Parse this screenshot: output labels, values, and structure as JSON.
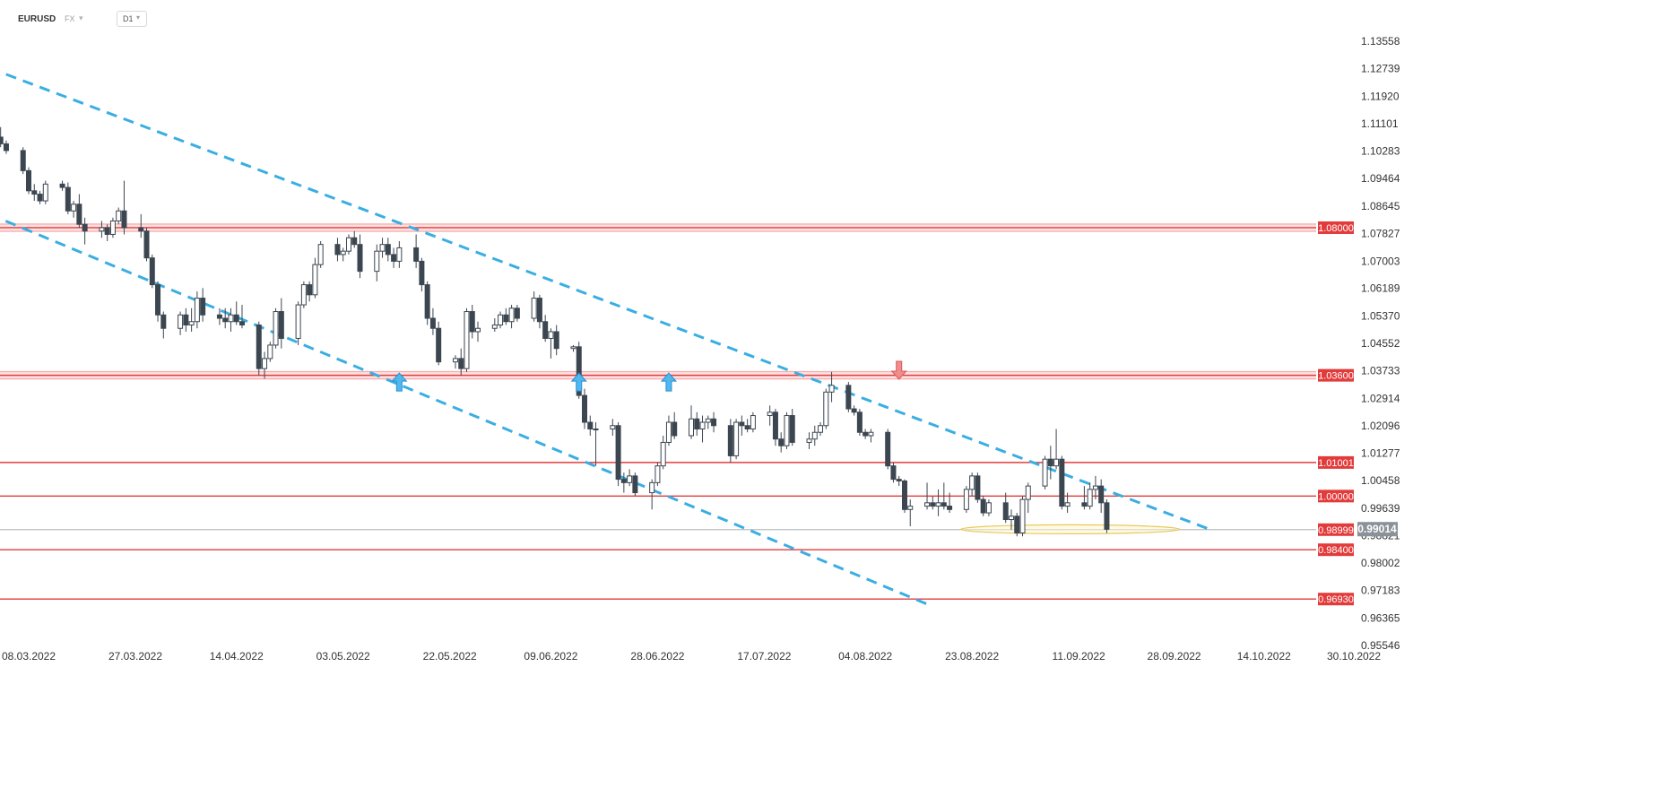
{
  "header": {
    "symbol": "EURUSD",
    "market": "FX",
    "timeframe": "D1"
  },
  "chart_data": {
    "type": "candlestick",
    "y_axis": {
      "ticks": [
        "1.13558",
        "1.12739",
        "1.11920",
        "1.11101",
        "1.10283",
        "1.09464",
        "1.08645",
        "1.07827",
        "1.07003",
        "1.06189",
        "1.05370",
        "1.04552",
        "1.03733",
        "1.02914",
        "1.02096",
        "1.01277",
        "1.00458",
        "0.99639",
        "0.98821",
        "0.98002",
        "0.97183",
        "0.96365",
        "0.95546"
      ],
      "tick_values": [
        1.13558,
        1.12739,
        1.1192,
        1.11101,
        1.10283,
        1.09464,
        1.08645,
        1.07827,
        1.07003,
        1.06189,
        1.0537,
        1.04552,
        1.03733,
        1.02914,
        1.02096,
        1.01277,
        1.00458,
        0.99639,
        0.98821,
        0.98002,
        0.97183,
        0.96365,
        0.95546
      ],
      "range": [
        0.95546,
        1.13558
      ]
    },
    "x_axis": {
      "ticks": [
        "08.03.2022",
        "27.03.2022",
        "14.04.2022",
        "03.05.2022",
        "22.05.2022",
        "09.06.2022",
        "28.06.2022",
        "17.07.2022",
        "04.08.2022",
        "23.08.2022",
        "11.09.2022",
        "28.09.2022",
        "14.10.2022",
        "30.10.2022"
      ]
    },
    "levels": [
      {
        "label": "1.08000",
        "value": 1.08,
        "zone": true
      },
      {
        "label": "1.03600",
        "value": 1.036,
        "zone": true
      },
      {
        "label": "1.01001",
        "value": 1.01001,
        "zone": false
      },
      {
        "label": "1.00000",
        "value": 1.0,
        "zone": false
      },
      {
        "label": "0.98999",
        "value": 0.98999,
        "zone": false
      },
      {
        "label": "0.98400",
        "value": 0.984,
        "zone": false
      },
      {
        "label": "0.96930",
        "value": 0.9693,
        "zone": false
      }
    ],
    "current_price": {
      "label": "0.99014",
      "value": 0.99014
    },
    "trend_channel": [
      {
        "name": "upper",
        "from": [
          "26.02.2022",
          1.1295
        ],
        "to": [
          "04.10.2022",
          0.9903
        ]
      },
      {
        "name": "lower",
        "from": [
          "26.02.2022",
          1.0861
        ],
        "to": [
          "15.08.2022",
          0.9678
        ]
      }
    ],
    "signals": [
      {
        "type": "up",
        "date": "13.05.2022",
        "value": 1.034
      },
      {
        "type": "up",
        "date": "14.06.2022",
        "value": 1.034
      },
      {
        "type": "up",
        "date": "30.06.2022",
        "value": 1.034
      },
      {
        "type": "down",
        "date": "10.08.2022",
        "value": 1.0375
      }
    ],
    "highlight_ellipse": {
      "from": "21.08.2022",
      "to": "29.09.2022",
      "value": 0.9901
    },
    "candles": [
      [
        1.0904,
        1.0955,
        1.0874,
        1.0951
      ],
      [
        1.0951,
        1.106,
        1.094,
        1.1045
      ],
      [
        1.1045,
        1.106,
        1.0983,
        1.0995
      ],
      [
        1.0995,
        1.101,
        1.093,
        1.094
      ],
      [
        1.094,
        1.096,
        1.092,
        1.095
      ],
      [
        1.095,
        1.098,
        1.094,
        1.096
      ],
      [
        1.096,
        1.102,
        1.0955,
        1.101
      ],
      [
        1.101,
        1.109,
        1.1,
        1.108
      ],
      [
        1.108,
        1.11,
        1.102,
        1.104
      ],
      [
        1.104,
        1.105,
        1.1015,
        1.103
      ],
      [
        1.103,
        1.106,
        1.1,
        1.101
      ],
      [
        1.101,
        1.103,
        1.0995,
        1.1005
      ],
      [
        1.1005,
        1.1025,
        1.098,
        1.099
      ],
      [
        1.099,
        1.1,
        1.097,
        1.098
      ],
      [
        1.098,
        1.1,
        1.0975,
        1.099
      ],
      [
        1.099,
        1.102,
        1.0965,
        1.0975
      ],
      [
        1.0975,
        1.1,
        1.096,
        1.0975
      ],
      [
        1.0975,
        1.108,
        1.096,
        1.107
      ],
      [
        1.107,
        1.118,
        1.106,
        1.116
      ],
      [
        1.116,
        1.118,
        1.106,
        1.107
      ],
      [
        1.107,
        1.11,
        1.104,
        1.105
      ],
      [
        1.105,
        1.106,
        1.102,
        1.103
      ],
      [
        1.103,
        1.104,
        1.096,
        1.097
      ],
      [
        1.097,
        1.098,
        1.09,
        1.091
      ],
      [
        1.091,
        1.093,
        1.088,
        1.09
      ],
      [
        1.09,
        1.091,
        1.087,
        1.088
      ],
      [
        1.088,
        1.094,
        1.087,
        1.093
      ],
      [
        1.093,
        1.094,
        1.091,
        1.092
      ],
      [
        1.092,
        1.0935,
        1.084,
        1.085
      ],
      [
        1.085,
        1.088,
        1.083,
        1.087
      ],
      [
        1.087,
        1.09,
        1.08,
        1.081
      ],
      [
        1.081,
        1.083,
        1.075,
        1.079
      ],
      [
        1.079,
        1.082,
        1.077,
        1.08
      ],
      [
        1.08,
        1.081,
        1.076,
        1.078
      ],
      [
        1.078,
        1.083,
        1.077,
        1.082
      ],
      [
        1.082,
        1.086,
        1.081,
        1.085
      ],
      [
        1.085,
        1.094,
        1.078,
        1.08
      ],
      [
        1.08,
        1.084,
        1.077,
        1.079
      ],
      [
        1.079,
        1.08,
        1.07,
        1.071
      ],
      [
        1.071,
        1.072,
        1.062,
        1.063
      ],
      [
        1.063,
        1.064,
        1.052,
        1.054
      ],
      [
        1.054,
        1.055,
        1.047,
        1.05
      ],
      [
        1.05,
        1.055,
        1.048,
        1.054
      ],
      [
        1.054,
        1.056,
        1.049,
        1.051
      ],
      [
        1.051,
        1.056,
        1.049,
        1.052
      ],
      [
        1.052,
        1.061,
        1.05,
        1.059
      ],
      [
        1.059,
        1.062,
        1.052,
        1.054
      ],
      [
        1.054,
        1.056,
        1.051,
        1.053
      ],
      [
        1.053,
        1.056,
        1.05,
        1.052
      ],
      [
        1.052,
        1.056,
        1.049,
        1.054
      ],
      [
        1.054,
        1.058,
        1.051,
        1.052
      ],
      [
        1.052,
        1.057,
        1.05,
        1.051
      ],
      [
        1.051,
        1.052,
        1.036,
        1.038
      ],
      [
        1.038,
        1.043,
        1.035,
        1.041
      ],
      [
        1.041,
        1.046,
        1.04,
        1.045
      ],
      [
        1.045,
        1.056,
        1.044,
        1.055
      ],
      [
        1.055,
        1.059,
        1.044,
        1.047
      ],
      [
        1.047,
        1.058,
        1.045,
        1.057
      ],
      [
        1.057,
        1.064,
        1.056,
        1.063
      ],
      [
        1.063,
        1.064,
        1.058,
        1.06
      ],
      [
        1.06,
        1.071,
        1.059,
        1.069
      ],
      [
        1.069,
        1.076,
        1.068,
        1.075
      ],
      [
        1.075,
        1.077,
        1.07,
        1.072
      ],
      [
        1.072,
        1.074,
        1.07,
        1.073
      ],
      [
        1.073,
        1.078,
        1.072,
        1.077
      ],
      [
        1.077,
        1.079,
        1.074,
        1.075
      ],
      [
        1.075,
        1.078,
        1.065,
        1.067
      ],
      [
        1.067,
        1.075,
        1.064,
        1.073
      ],
      [
        1.073,
        1.077,
        1.071,
        1.075
      ],
      [
        1.075,
        1.077,
        1.07,
        1.072
      ],
      [
        1.072,
        1.074,
        1.068,
        1.07
      ],
      [
        1.07,
        1.076,
        1.068,
        1.074
      ],
      [
        1.074,
        1.078,
        1.068,
        1.07
      ],
      [
        1.07,
        1.071,
        1.061,
        1.063
      ],
      [
        1.063,
        1.064,
        1.051,
        1.053
      ],
      [
        1.053,
        1.056,
        1.048,
        1.05
      ],
      [
        1.05,
        1.052,
        1.039,
        1.04
      ],
      [
        1.04,
        1.042,
        1.038,
        1.041
      ],
      [
        1.041,
        1.044,
        1.036,
        1.038
      ],
      [
        1.038,
        1.056,
        1.037,
        1.055
      ],
      [
        1.055,
        1.057,
        1.047,
        1.049
      ],
      [
        1.049,
        1.052,
        1.046,
        1.05
      ],
      [
        1.05,
        1.053,
        1.049,
        1.051
      ],
      [
        1.051,
        1.055,
        1.05,
        1.054
      ],
      [
        1.054,
        1.056,
        1.051,
        1.052
      ],
      [
        1.052,
        1.057,
        1.05,
        1.056
      ],
      [
        1.056,
        1.057,
        1.052,
        1.053
      ],
      [
        1.053,
        1.061,
        1.052,
        1.059
      ],
      [
        1.059,
        1.06,
        1.05,
        1.052
      ],
      [
        1.052,
        1.054,
        1.046,
        1.047
      ],
      [
        1.047,
        1.05,
        1.041,
        1.049
      ],
      [
        1.049,
        1.051,
        1.042,
        1.044
      ],
      [
        1.044,
        1.045,
        1.043,
        1.0445
      ],
      [
        1.0445,
        1.046,
        1.029,
        1.03
      ],
      [
        1.03,
        1.032,
        1.02,
        1.022
      ],
      [
        1.022,
        1.024,
        1.018,
        1.02
      ],
      [
        1.02,
        1.022,
        1.009,
        1.02
      ],
      [
        1.02,
        1.023,
        1.018,
        1.021
      ],
      [
        1.021,
        1.022,
        1.003,
        1.005
      ],
      [
        1.005,
        1.007,
        1.001,
        1.004
      ],
      [
        1.004,
        1.008,
        1.003,
        1.006
      ],
      [
        1.006,
        1.007,
        1.0,
        1.001
      ],
      [
        1.001,
        1.005,
        0.996,
        1.004
      ],
      [
        1.004,
        1.01,
        1.003,
        1.009
      ],
      [
        1.009,
        1.018,
        1.008,
        1.016
      ],
      [
        1.016,
        1.024,
        1.015,
        1.022
      ],
      [
        1.022,
        1.025,
        1.017,
        1.018
      ],
      [
        1.018,
        1.027,
        1.017,
        1.023
      ],
      [
        1.023,
        1.025,
        1.018,
        1.02
      ],
      [
        1.02,
        1.024,
        1.016,
        1.022
      ],
      [
        1.022,
        1.024,
        1.02,
        1.023
      ],
      [
        1.023,
        1.025,
        1.019,
        1.021
      ],
      [
        1.021,
        1.023,
        1.01,
        1.012
      ],
      [
        1.012,
        1.023,
        1.011,
        1.022
      ],
      [
        1.022,
        1.024,
        1.018,
        1.021
      ],
      [
        1.021,
        1.023,
        1.019,
        1.02
      ],
      [
        1.02,
        1.025,
        1.019,
        1.024
      ],
      [
        1.024,
        1.027,
        1.021,
        1.025
      ],
      [
        1.025,
        1.026,
        1.015,
        1.017
      ],
      [
        1.017,
        1.019,
        1.013,
        1.015
      ],
      [
        1.015,
        1.025,
        1.014,
        1.024
      ],
      [
        1.024,
        1.026,
        1.015,
        1.016
      ],
      [
        1.016,
        1.019,
        1.014,
        1.017
      ],
      [
        1.017,
        1.021,
        1.015,
        1.019
      ],
      [
        1.019,
        1.022,
        1.018,
        1.021
      ],
      [
        1.021,
        1.032,
        1.02,
        1.031
      ],
      [
        1.031,
        1.037,
        1.028,
        1.033
      ],
      [
        1.033,
        1.034,
        1.025,
        1.026
      ],
      [
        1.026,
        1.027,
        1.024,
        1.025
      ],
      [
        1.025,
        1.026,
        1.018,
        1.019
      ],
      [
        1.019,
        1.02,
        1.017,
        1.018
      ],
      [
        1.018,
        1.02,
        1.016,
        1.019
      ],
      [
        1.019,
        1.02,
        1.008,
        1.009
      ],
      [
        1.009,
        1.01,
        1.004,
        1.005
      ],
      [
        1.005,
        1.006,
        1.003,
        1.0045
      ],
      [
        1.0045,
        1.005,
        0.995,
        0.996
      ],
      [
        0.996,
        0.999,
        0.991,
        0.997
      ],
      [
        0.997,
        1.004,
        0.996,
        0.998
      ],
      [
        0.998,
        1.0,
        0.996,
        0.997
      ],
      [
        0.997,
        1.002,
        0.994,
        0.998
      ],
      [
        0.998,
        1.004,
        0.996,
        0.997
      ],
      [
        0.997,
        1.001,
        0.995,
        0.996
      ],
      [
        0.996,
        1.003,
        0.995,
        1.002
      ],
      [
        1.002,
        1.007,
        1.0,
        1.006
      ],
      [
        1.006,
        1.007,
        0.998,
        0.999
      ],
      [
        0.999,
        1.0,
        0.994,
        0.995
      ],
      [
        0.995,
        0.999,
        0.994,
        0.998
      ],
      [
        0.998,
        1.001,
        0.992,
        0.993
      ],
      [
        0.993,
        0.996,
        0.99,
        0.994
      ],
      [
        0.994,
        0.995,
        0.988,
        0.989
      ],
      [
        0.989,
        1.0,
        0.988,
        0.999
      ],
      [
        0.999,
        1.004,
        0.995,
        1.003
      ],
      [
        1.003,
        1.012,
        1.002,
        1.011
      ],
      [
        1.011,
        1.015,
        1.005,
        1.009
      ],
      [
        1.009,
        1.02,
        1.008,
        1.011
      ],
      [
        1.011,
        1.012,
        0.996,
        0.997
      ],
      [
        0.997,
        1.001,
        0.995,
        0.998
      ],
      [
        0.998,
        1.003,
        0.996,
        0.997
      ],
      [
        0.997,
        1.004,
        0.996,
        1.002
      ],
      [
        1.002,
        1.006,
        0.999,
        1.003
      ],
      [
        1.003,
        1.005,
        0.995,
        0.998
      ],
      [
        0.998,
        0.999,
        0.989,
        0.9901
      ]
    ]
  }
}
